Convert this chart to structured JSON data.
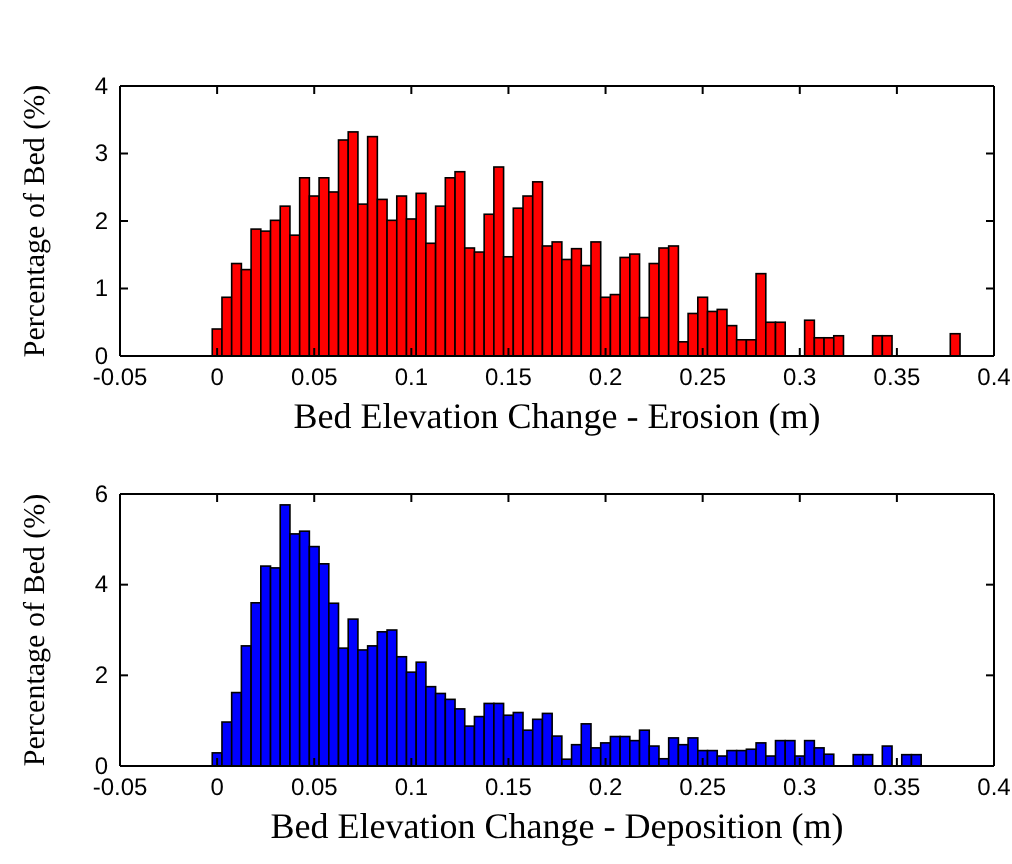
{
  "chart_data": [
    {
      "type": "histogram",
      "xlabel": "Bed Elevation Change - Erosion (m)",
      "ylabel": "Percentage of Bed (%)",
      "color": "#ff0000",
      "xlim": [
        -0.05,
        0.4
      ],
      "xticks": [
        -0.05,
        0,
        0.05,
        0.1,
        0.15,
        0.2,
        0.25,
        0.3,
        0.35,
        0.4
      ],
      "ylim": [
        0,
        4
      ],
      "yticks": [
        0,
        1,
        2,
        3,
        4
      ],
      "grid": false,
      "bins": [
        -0.0025,
        0.0025,
        0.0075,
        0.0125,
        0.0175,
        0.0225,
        0.0275,
        0.0325,
        0.0375,
        0.0425,
        0.0475,
        0.0525,
        0.0575,
        0.0625,
        0.0675,
        0.0725,
        0.0775,
        0.0825,
        0.0875,
        0.0925,
        0.0975,
        0.1025,
        0.1075,
        0.1125,
        0.1175,
        0.1225,
        0.1275,
        0.1325,
        0.1375,
        0.1425,
        0.1475,
        0.1525,
        0.1575,
        0.1625,
        0.1675,
        0.1725,
        0.1775,
        0.1825,
        0.1875,
        0.1925,
        0.1975,
        0.2025,
        0.2075,
        0.2125,
        0.2175,
        0.2225,
        0.2275,
        0.2325,
        0.2375,
        0.2425,
        0.2475,
        0.2525,
        0.2575,
        0.2625,
        0.2675,
        0.2725,
        0.2775,
        0.2825,
        0.2875,
        0.2925,
        0.2975,
        0.3025,
        0.3075,
        0.3125,
        0.3175,
        0.3225,
        0.3275,
        0.3325,
        0.3375,
        0.3425,
        0.3475,
        0.3525,
        0.3575,
        0.3625,
        0.3675,
        0.3725,
        0.3775,
        0.3825
      ],
      "values": [
        0.4,
        0.87,
        1.37,
        1.28,
        1.88,
        1.85,
        2.01,
        2.22,
        1.79,
        2.64,
        2.37,
        2.64,
        2.43,
        3.2,
        3.32,
        2.25,
        3.25,
        2.32,
        2.01,
        2.37,
        2.03,
        2.41,
        1.67,
        2.22,
        2.64,
        2.73,
        1.6,
        1.54,
        2.1,
        2.8,
        1.47,
        2.19,
        2.37,
        2.58,
        1.63,
        1.69,
        1.43,
        1.59,
        1.34,
        1.69,
        0.87,
        0.91,
        1.46,
        1.51,
        0.57,
        1.37,
        1.6,
        1.63,
        0.21,
        0.63,
        0.87,
        0.66,
        0.69,
        0.45,
        0.24,
        0.24,
        1.22,
        0.5,
        0.5,
        0,
        0,
        0.53,
        0.27,
        0.27,
        0.3,
        0,
        0,
        0,
        0.3,
        0.3,
        0,
        0,
        0,
        0,
        0,
        0,
        0.33
      ]
    },
    {
      "type": "histogram",
      "xlabel": "Bed Elevation Change - Deposition (m)",
      "ylabel": "Percentage of Bed (%)",
      "color": "#0000ff",
      "xlim": [
        -0.05,
        0.4
      ],
      "xticks": [
        -0.05,
        0,
        0.05,
        0.1,
        0.15,
        0.2,
        0.25,
        0.3,
        0.35,
        0.4
      ],
      "ylim": [
        0,
        6
      ],
      "yticks": [
        0,
        2,
        4,
        6
      ],
      "grid": false,
      "bins": [
        -0.0025,
        0.0025,
        0.0075,
        0.0125,
        0.0175,
        0.0225,
        0.0275,
        0.0325,
        0.0375,
        0.0425,
        0.0475,
        0.0525,
        0.0575,
        0.0625,
        0.0675,
        0.0725,
        0.0775,
        0.0825,
        0.0875,
        0.0925,
        0.0975,
        0.1025,
        0.1075,
        0.1125,
        0.1175,
        0.1225,
        0.1275,
        0.1325,
        0.1375,
        0.1425,
        0.1475,
        0.1525,
        0.1575,
        0.1625,
        0.1675,
        0.1725,
        0.1775,
        0.1825,
        0.1875,
        0.1925,
        0.1975,
        0.2025,
        0.2075,
        0.2125,
        0.2175,
        0.2225,
        0.2275,
        0.2325,
        0.2375,
        0.2425,
        0.2475,
        0.2525,
        0.2575,
        0.2625,
        0.2675,
        0.2725,
        0.2775,
        0.2825,
        0.2875,
        0.2925,
        0.2975,
        0.3025,
        0.3075,
        0.3125,
        0.3175,
        0.3225,
        0.3275,
        0.3325,
        0.3375,
        0.3425,
        0.3475,
        0.3525,
        0.3575,
        0.3625
      ],
      "values": [
        0.29,
        0.97,
        1.62,
        2.65,
        3.6,
        4.41,
        4.37,
        5.76,
        5.12,
        5.18,
        4.84,
        4.46,
        3.59,
        2.6,
        3.24,
        2.56,
        2.65,
        2.96,
        3.0,
        2.41,
        2.07,
        2.29,
        1.75,
        1.6,
        1.47,
        1.26,
        0.88,
        1.09,
        1.38,
        1.38,
        1.12,
        1.18,
        0.79,
        1.03,
        1.16,
        0.66,
        0.15,
        0.47,
        0.93,
        0.4,
        0.51,
        0.65,
        0.65,
        0.56,
        0.79,
        0.44,
        0.16,
        0.62,
        0.47,
        0.62,
        0.34,
        0.34,
        0.22,
        0.34,
        0.34,
        0.37,
        0.51,
        0.22,
        0.56,
        0.56,
        0.22,
        0.56,
        0.4,
        0.26,
        0,
        0,
        0.25,
        0.25,
        0,
        0.44,
        0,
        0.25,
        0.25
      ]
    }
  ]
}
